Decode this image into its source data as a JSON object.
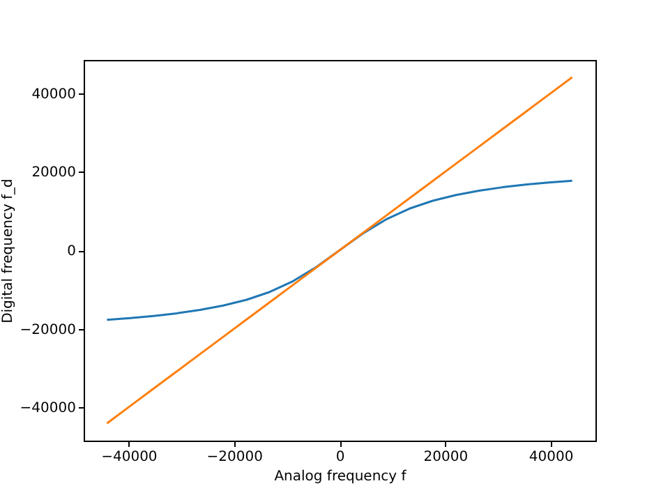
{
  "chart_data": {
    "type": "line",
    "xlabel": "Analog frequency f",
    "ylabel": "Digital frequency f_d",
    "x": [
      -44100,
      -39690,
      -35280,
      -30870,
      -26460,
      -22050,
      -17640,
      -13230,
      -8820,
      -4410,
      0,
      4410,
      8820,
      13230,
      17640,
      22050,
      26460,
      30870,
      35280,
      39690,
      44100
    ],
    "series": [
      {
        "color": "#1f77b4",
        "values": [
          -17724,
          -17287,
          -16739,
          -16061,
          -15204,
          -14091,
          -12611,
          -10610,
          -7875,
          -4276,
          0,
          4276,
          7875,
          10610,
          12611,
          14091,
          15204,
          16061,
          16739,
          17287,
          17724
        ]
      },
      {
        "color": "#ff7f0e",
        "values": [
          -44100,
          -39690,
          -35280,
          -30870,
          -26460,
          -22050,
          -17640,
          -13230,
          -8820,
          -4410,
          0,
          4410,
          8820,
          13230,
          17640,
          22050,
          26460,
          30870,
          35280,
          39690,
          44100
        ]
      }
    ],
    "xlim": [
      -48510,
      48510
    ],
    "ylim": [
      -48510,
      48510
    ],
    "xticks": [
      -40000,
      -20000,
      0,
      20000,
      40000
    ],
    "yticks": [
      -40000,
      -20000,
      0,
      20000,
      40000
    ],
    "grid": false
  }
}
